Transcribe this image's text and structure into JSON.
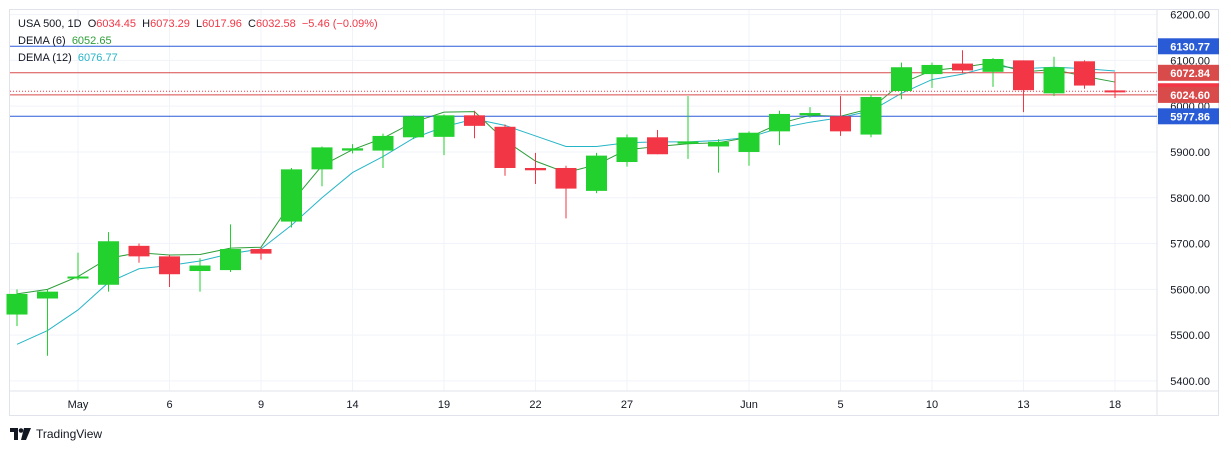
{
  "legend": {
    "symbol": "USA 500, 1D",
    "open_label": "O",
    "open": "6034.45",
    "high_label": "H",
    "high": "6073.29",
    "low_label": "L",
    "low": "6017.96",
    "close_label": "C",
    "close": "6032.58",
    "change": "−5.46 (−0.09%)",
    "dema6_label": "DEMA (6)",
    "dema6_value": "6052.65",
    "dema12_label": "DEMA (12)",
    "dema12_value": "6076.77"
  },
  "brand": {
    "name": "TradingView",
    "logo_icon": "tradingview-logo-icon"
  },
  "colors": {
    "up": "#22d02e",
    "down": "#f23645",
    "dema6": "#2e9e39",
    "dema12": "#26b5c7",
    "blue_line": "#2a5bd7",
    "red_line": "#d94a4a",
    "grid": "#f0f3fa"
  },
  "chart_data": {
    "type": "candlestick",
    "y_axis": {
      "ylim": [
        5378,
        6210
      ],
      "ticks": [
        6200,
        6100,
        6000,
        5900,
        5800,
        5700,
        5600,
        5500,
        5400
      ],
      "tick_labels": [
        "6200.00",
        "6100.00",
        "6000.00",
        "5900.00",
        "5800.00",
        "5700.00",
        "5600.00",
        "5500.00",
        "5400.00"
      ]
    },
    "x_axis": {
      "tick_labels": [
        {
          "label": "May",
          "index": 2
        },
        {
          "label": "6",
          "index": 5
        },
        {
          "label": "9",
          "index": 8
        },
        {
          "label": "14",
          "index": 11
        },
        {
          "label": "19",
          "index": 14
        },
        {
          "label": "22",
          "index": 17
        },
        {
          "label": "27",
          "index": 20
        },
        {
          "label": "Jun",
          "index": 24
        },
        {
          "label": "5",
          "index": 27
        },
        {
          "label": "10",
          "index": 30
        },
        {
          "label": "13",
          "index": 33
        },
        {
          "label": "18",
          "index": 36
        }
      ]
    },
    "candles": [
      {
        "o": 5545,
        "h": 5600,
        "l": 5520,
        "c": 5590
      },
      {
        "o": 5580,
        "h": 5600,
        "l": 5455,
        "c": 5595
      },
      {
        "o": 5625,
        "h": 5680,
        "l": 5620,
        "c": 5628
      },
      {
        "o": 5610,
        "h": 5725,
        "l": 5595,
        "c": 5705
      },
      {
        "o": 5695,
        "h": 5700,
        "l": 5658,
        "c": 5672
      },
      {
        "o": 5672,
        "h": 5675,
        "l": 5605,
        "c": 5633
      },
      {
        "o": 5640,
        "h": 5668,
        "l": 5595,
        "c": 5652
      },
      {
        "o": 5642,
        "h": 5742,
        "l": 5638,
        "c": 5688
      },
      {
        "o": 5688,
        "h": 5692,
        "l": 5665,
        "c": 5678
      },
      {
        "o": 5748,
        "h": 5865,
        "l": 5735,
        "c": 5862
      },
      {
        "o": 5862,
        "h": 5912,
        "l": 5825,
        "c": 5910
      },
      {
        "o": 5903,
        "h": 5917,
        "l": 5897,
        "c": 5908
      },
      {
        "o": 5903,
        "h": 5940,
        "l": 5865,
        "c": 5935
      },
      {
        "o": 5932,
        "h": 5980,
        "l": 5928,
        "c": 5978
      },
      {
        "o": 5933,
        "h": 5982,
        "l": 5893,
        "c": 5980
      },
      {
        "o": 5980,
        "h": 5990,
        "l": 5930,
        "c": 5957
      },
      {
        "o": 5955,
        "h": 5960,
        "l": 5848,
        "c": 5865
      },
      {
        "o": 5865,
        "h": 5898,
        "l": 5830,
        "c": 5860
      },
      {
        "o": 5865,
        "h": 5870,
        "l": 5755,
        "c": 5820
      },
      {
        "o": 5815,
        "h": 5898,
        "l": 5810,
        "c": 5892
      },
      {
        "o": 5878,
        "h": 5938,
        "l": 5868,
        "c": 5932
      },
      {
        "o": 5932,
        "h": 5948,
        "l": 5895,
        "c": 5895
      },
      {
        "o": 5918,
        "h": 6022,
        "l": 5885,
        "c": 5923
      },
      {
        "o": 5912,
        "h": 5928,
        "l": 5855,
        "c": 5922
      },
      {
        "o": 5900,
        "h": 5945,
        "l": 5870,
        "c": 5942
      },
      {
        "o": 5945,
        "h": 5990,
        "l": 5915,
        "c": 5983
      },
      {
        "o": 5980,
        "h": 5998,
        "l": 5975,
        "c": 5985
      },
      {
        "o": 5978,
        "h": 6022,
        "l": 5935,
        "c": 5945
      },
      {
        "o": 5938,
        "h": 6025,
        "l": 5932,
        "c": 6020
      },
      {
        "o": 6033,
        "h": 6095,
        "l": 6015,
        "c": 6085
      },
      {
        "o": 6070,
        "h": 6095,
        "l": 6040,
        "c": 6090
      },
      {
        "o": 6093,
        "h": 6122,
        "l": 6072,
        "c": 6078
      },
      {
        "o": 6075,
        "h": 6105,
        "l": 6042,
        "c": 6103
      },
      {
        "o": 6100,
        "h": 6100,
        "l": 5987,
        "c": 6035
      },
      {
        "o": 6028,
        "h": 6108,
        "l": 6022,
        "c": 6085
      },
      {
        "o": 6098,
        "h": 6100,
        "l": 6038,
        "c": 6045
      },
      {
        "o": 6034.45,
        "h": 6073.29,
        "l": 6017.96,
        "c": 6032.58
      }
    ],
    "dema6": [
      5590,
      5600,
      5628,
      5668,
      5680,
      5675,
      5676,
      5690,
      5692,
      5790,
      5870,
      5905,
      5930,
      5965,
      5987,
      5988,
      5925,
      5880,
      5855,
      5872,
      5905,
      5912,
      5918,
      5920,
      5932,
      5962,
      5980,
      5978,
      5995,
      6050,
      6078,
      6085,
      6095,
      6075,
      6080,
      6065,
      6052.65
    ],
    "dema12": [
      5480,
      5510,
      5555,
      5615,
      5645,
      5652,
      5662,
      5678,
      5688,
      5740,
      5800,
      5855,
      5890,
      5930,
      5955,
      5972,
      5958,
      5935,
      5912,
      5912,
      5920,
      5922,
      5922,
      5925,
      5932,
      5952,
      5965,
      5975,
      5990,
      6028,
      6058,
      6070,
      6088,
      6082,
      6085,
      6082,
      6076.77
    ],
    "horizontal_levels": [
      {
        "value": 6130.77,
        "label": "6130.77",
        "color": "#2a5bd7",
        "style": "solid"
      },
      {
        "value": 6072.84,
        "label": "6072.84",
        "color": "#d94a4a",
        "style": "solid"
      },
      {
        "value": 6032.58,
        "label": "6032.58",
        "color": "#f23645",
        "style": "dotted"
      },
      {
        "value": 6024.6,
        "label": "6024.60",
        "color": "#d94a4a",
        "style": "solid"
      },
      {
        "value": 5977.86,
        "label": "5977.86",
        "color": "#2a5bd7",
        "style": "solid"
      }
    ]
  }
}
